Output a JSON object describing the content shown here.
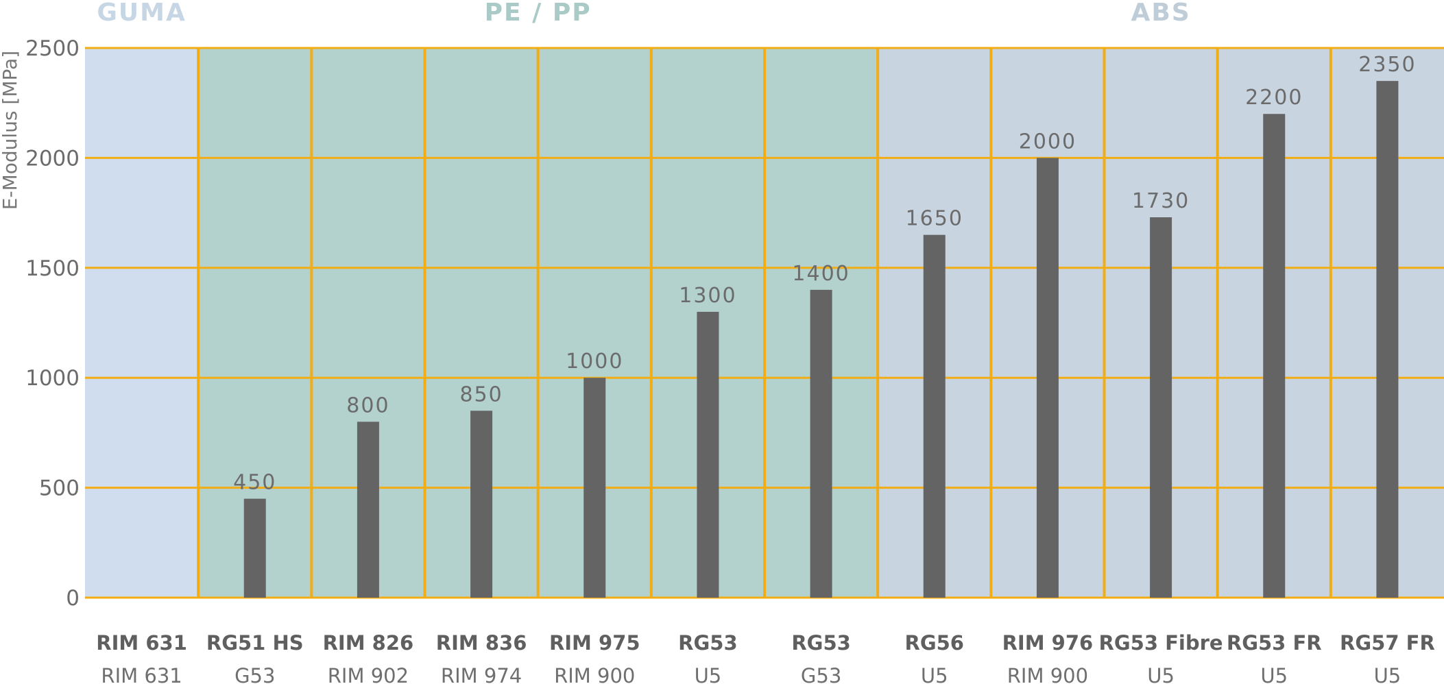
{
  "chart_data": {
    "type": "bar",
    "ylabel": "E-Modulus [MPa]",
    "ylim": [
      0,
      2500
    ],
    "yticks": [
      "0",
      "500",
      "1000",
      "1500",
      "2000",
      "2500"
    ],
    "grid": true,
    "groups": [
      {
        "label": "GUMA",
        "start": 0,
        "end": 0,
        "color": "#cfddee",
        "label_color": "#c7d6e5"
      },
      {
        "label": "PE / PP",
        "start": 1,
        "end": 6,
        "color": "#b3d1cd",
        "label_color": "#a9cac6"
      },
      {
        "label": "ABS",
        "start": 7,
        "end": 11,
        "color": "#c8d4e0",
        "label_color": "#bfcdd9"
      }
    ],
    "categories": [
      {
        "name": "RIM 631",
        "sub": "RIM 631",
        "value": null,
        "label": ""
      },
      {
        "name": "RG51 HS",
        "sub": "G53",
        "value": 450,
        "label": "450"
      },
      {
        "name": "RIM 826",
        "sub": "RIM 902",
        "value": 800,
        "label": "800"
      },
      {
        "name": "RIM 836",
        "sub": "RIM 974",
        "value": 850,
        "label": "850"
      },
      {
        "name": "RIM 975",
        "sub": "RIM 900",
        "value": 1000,
        "label": "1000"
      },
      {
        "name": "RG53",
        "sub": "U5",
        "value": 1300,
        "label": "1300"
      },
      {
        "name": "RG53",
        "sub": "G53",
        "value": 1400,
        "label": "1400"
      },
      {
        "name": "RG56",
        "sub": "U5",
        "value": 1650,
        "label": "1650"
      },
      {
        "name": "RIM 976",
        "sub": "RIM 900",
        "value": 2000,
        "label": "2000"
      },
      {
        "name": "RG53 Fibre",
        "sub": "U5",
        "value": 1730,
        "label": "1730"
      },
      {
        "name": "RG53 FR",
        "sub": "U5",
        "value": 2200,
        "label": "2200"
      },
      {
        "name": "RG57 FR",
        "sub": "U5",
        "value": 2350,
        "label": "2350"
      }
    ],
    "colors": {
      "bar": "#646464",
      "grid": "#f2ad14",
      "axis_text": "#6b6b6b"
    }
  }
}
